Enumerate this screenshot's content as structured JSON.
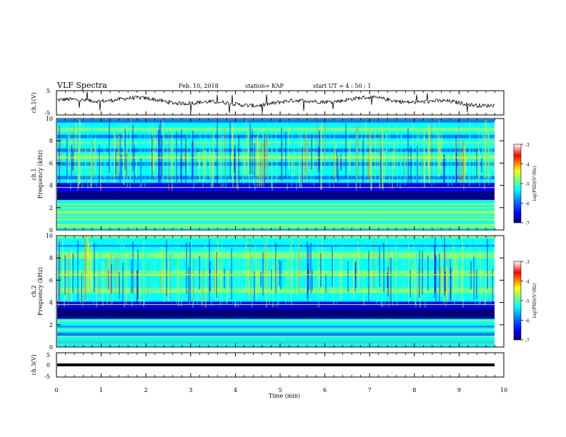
{
  "header": {
    "title": "VLF Spectra",
    "date": "Feb. 10, 2018",
    "station": "station= KAP",
    "start_time": "start  UT =   4 : 50 : 1"
  },
  "chart_data": [
    {
      "type": "line",
      "name": "ch1-waveform",
      "ylabel": "ch.1(V)",
      "xlim": [
        0,
        10
      ],
      "ylim": [
        -5,
        5
      ],
      "yticks": [
        "5",
        "-5"
      ],
      "description_values": "noisy waveform oscillating roughly between -1.5 V and +3 V"
    },
    {
      "type": "heatmap",
      "name": "ch1-spectrogram",
      "ylabel": "ch.1\nFrequency (kHz)",
      "xlim": [
        0,
        10
      ],
      "ylim": [
        0,
        10
      ],
      "yticks": [
        "0",
        "2",
        "4",
        "6",
        "8",
        "10"
      ],
      "colorbar": {
        "label": "log(PSD)(V²/Hz)",
        "range": [
          -7,
          -3
        ],
        "ticks": [
          "-3",
          "-4",
          "-5",
          "-6",
          "-7"
        ]
      }
    },
    {
      "type": "heatmap",
      "name": "ch2-spectrogram",
      "ylabel": "ch.2\nFrequency (kHz)",
      "xlim": [
        0,
        10
      ],
      "ylim": [
        0,
        10
      ],
      "yticks": [
        "0",
        "2",
        "4",
        "6",
        "8",
        "10"
      ],
      "colorbar": {
        "label": "log(PSD)(V²/Hz)",
        "range": [
          -7,
          -3
        ],
        "ticks": [
          "-3",
          "-4",
          "-5",
          "-6",
          "-7"
        ]
      }
    },
    {
      "type": "line",
      "name": "ch3-waveform",
      "ylabel": "ch.3(V)",
      "xlim": [
        0,
        10
      ],
      "ylim": [
        -5,
        5
      ],
      "yticks": [
        "5",
        "0",
        "-5"
      ],
      "values_constant": 0
    }
  ],
  "xaxis": {
    "label": "Time (min)",
    "ticks": [
      "0",
      "1",
      "2",
      "3",
      "4",
      "5",
      "6",
      "7",
      "8",
      "9",
      "10"
    ]
  },
  "colors": {
    "colormap": [
      "#00007f",
      "#0000ff",
      "#007fff",
      "#00ffff",
      "#7fff7f",
      "#ffff00",
      "#ff7f00",
      "#ff0000",
      "#ff9999",
      "#ffffff"
    ],
    "trace": "#000000"
  }
}
